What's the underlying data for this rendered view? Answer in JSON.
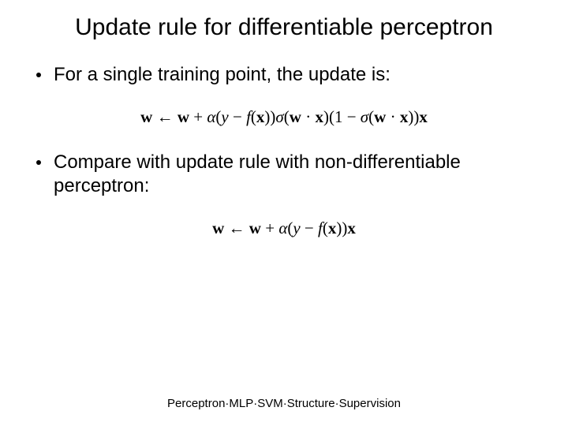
{
  "slide": {
    "title": "Update rule for differentiable perceptron",
    "bullets": [
      "For a single training point, the update is:",
      "Compare with update rule with non-differentiable perceptron:"
    ],
    "formulas": {
      "diff": {
        "w": "w",
        "arrow": " ← ",
        "plus": " + ",
        "alpha": "α",
        "lparen": "(",
        "y": "y",
        "minus": " − ",
        "f": "f",
        "x": "x",
        "rparen": ")",
        "sigma": "σ",
        "dot": " · ",
        "one": "1",
        "open": "(",
        "close": ")"
      }
    },
    "footer": "Perceptron·MLP·SVM·Structure·Supervision"
  },
  "style": {
    "background_color": "#ffffff",
    "text_color": "#000000",
    "title_fontsize": 30,
    "body_fontsize": 24,
    "formula_fontsize": 21,
    "footer_fontsize": 15,
    "formula_font": "Times New Roman",
    "body_font": "Arial"
  }
}
